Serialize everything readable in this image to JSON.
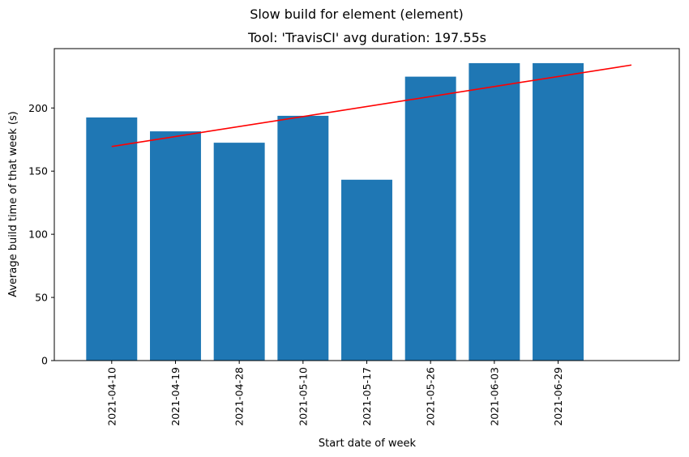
{
  "chart_data": {
    "type": "bar",
    "suptitle": "Slow build for element (element)",
    "title": "Tool: 'TravisCI' avg duration: 197.55s",
    "xlabel": "Start date of week",
    "ylabel": "Average build time of that week (s)",
    "categories": [
      "2021-04-10",
      "2021-04-19",
      "2021-04-28",
      "2021-05-10",
      "2021-05-17",
      "2021-05-26",
      "2021-06-03",
      "2021-06-29"
    ],
    "values": [
      192.5,
      181.5,
      172.5,
      193.8,
      143.2,
      224.8,
      235.5,
      235.5
    ],
    "ylim": [
      0,
      247
    ],
    "yticks": [
      0,
      50,
      100,
      150,
      200
    ],
    "xlim": [
      -0.9,
      8.9
    ],
    "trend_line": {
      "x": [
        0,
        8.15
      ],
      "y": [
        169.5,
        234.0
      ]
    },
    "bar_color": "#1f77b4",
    "trend_color": "#ff0000",
    "grid": false,
    "legend": "none"
  }
}
